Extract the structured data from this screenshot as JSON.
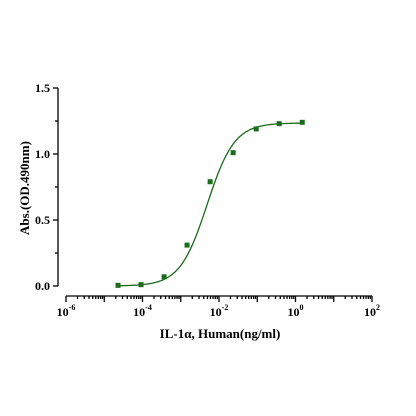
{
  "chart_data": {
    "type": "scatter",
    "title": "",
    "xlabel": "IL-1α, Human(ng/ml)",
    "ylabel": "Abs.(OD.490nm)",
    "x_scale": "log10",
    "xlim": [
      1e-06,
      100
    ],
    "ylim": [
      0,
      1.5
    ],
    "x_ticks": [
      {
        "base": "10",
        "exp": "-6",
        "value": 1e-06
      },
      {
        "base": "10",
        "exp": "-4",
        "value": 0.0001
      },
      {
        "base": "10",
        "exp": "-2",
        "value": 0.01
      },
      {
        "base": "10",
        "exp": "0",
        "value": 1
      },
      {
        "base": "10",
        "exp": "2",
        "value": 100
      }
    ],
    "y_ticks": [
      {
        "label": "0.0",
        "value": 0
      },
      {
        "label": "0.5",
        "value": 0.5
      },
      {
        "label": "1.0",
        "value": 1.0
      },
      {
        "label": "1.5",
        "value": 1.5
      }
    ],
    "grid": false,
    "legend": "none",
    "series": [
      {
        "x": [
          2.29e-05,
          9.16e-05,
          0.000366,
          0.00146,
          0.00586,
          0.0234,
          0.0938,
          0.375,
          1.5
        ],
        "y": [
          0.005,
          0.01,
          0.07,
          0.31,
          0.79,
          1.01,
          1.19,
          1.23,
          1.24
        ],
        "fit": "4PL",
        "fit_params": {
          "bottom": 0.0,
          "top": 1.235,
          "ec50": 0.0049,
          "hill": 1.22
        },
        "color": "#1a6b1a"
      }
    ]
  }
}
